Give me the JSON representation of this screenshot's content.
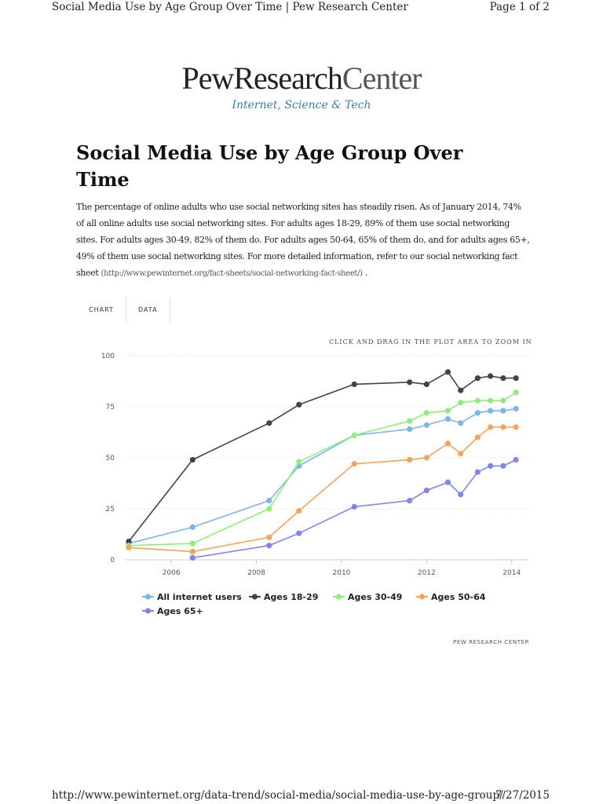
{
  "print_header": {
    "title": "Social Media Use by Age Group Over Time | Pew Research Center",
    "page": "Page 1 of 2"
  },
  "logo": {
    "word1": "PewResearch",
    "word2": "Center",
    "subtitle": "Internet, Science & Tech"
  },
  "article": {
    "title": "Social Media Use by Age Group Over Time",
    "intro": "The percentage of online adults who use social networking sites has steadily risen. As of January 2014, 74% of all online adults use social networking sites. For adults ages 18-29, 89% of them use social networking sites. For adults ages 30-49, 82% of them do. For adults ages 50-64, 65% of them do, and for adults ages 65+, 49% of them use social networking sites. For more detailed information, refer to our social networking fact sheet",
    "intro_link": "(http://www.pewinternet.org/fact-sheets/social-networking-fact-sheet/)",
    "intro_end": "."
  },
  "chart_tabs": {
    "chart_label": "CHART",
    "data_label": "DATA"
  },
  "zoom_hint": "CLICK AND DRAG IN THE PLOT AREA TO ZOOM IN",
  "chart_credit": "PEW RESEARCH CENTER",
  "chart_data": {
    "type": "line",
    "title": "",
    "xlabel": "",
    "ylabel": "",
    "xlim": [
      2005.0,
      2014.3
    ],
    "ylim": [
      0,
      100
    ],
    "yticks": [
      0,
      25,
      50,
      75,
      100
    ],
    "xticks": [
      2006,
      2008,
      2010,
      2012,
      2014
    ],
    "grid": true,
    "legend_position": "bottom-left",
    "series": [
      {
        "name": "All internet users",
        "color": "#7cb5ec",
        "x": [
          2005.0,
          2006.5,
          2008.3,
          2009.0,
          2010.3,
          2011.6,
          2012.0,
          2012.5,
          2012.8,
          2013.2,
          2013.5,
          2013.8,
          2014.1
        ],
        "values": [
          8,
          16,
          29,
          46,
          61,
          64,
          66,
          69,
          67,
          72,
          73,
          73,
          74
        ]
      },
      {
        "name": "Ages 18-29",
        "color": "#434348",
        "x": [
          2005.0,
          2006.5,
          2008.3,
          2009.0,
          2010.3,
          2011.6,
          2012.0,
          2012.5,
          2012.8,
          2013.2,
          2013.5,
          2013.8,
          2014.1
        ],
        "values": [
          9,
          49,
          67,
          76,
          86,
          87,
          86,
          92,
          83,
          89,
          90,
          89,
          89
        ]
      },
      {
        "name": "Ages 30-49",
        "color": "#90ed7d",
        "x": [
          2005.0,
          2006.5,
          2008.3,
          2009.0,
          2010.3,
          2011.6,
          2012.0,
          2012.5,
          2012.8,
          2013.2,
          2013.5,
          2013.8,
          2014.1
        ],
        "values": [
          7,
          8,
          25,
          48,
          61,
          68,
          72,
          73,
          77,
          78,
          78,
          78,
          82
        ]
      },
      {
        "name": "Ages 50-64",
        "color": "#f7a35c",
        "x": [
          2005.0,
          2006.5,
          2008.3,
          2009.0,
          2010.3,
          2011.6,
          2012.0,
          2012.5,
          2012.8,
          2013.2,
          2013.5,
          2013.8,
          2014.1
        ],
        "values": [
          6,
          4,
          11,
          24,
          47,
          49,
          50,
          57,
          52,
          60,
          65,
          65,
          65
        ]
      },
      {
        "name": "Ages 65+",
        "color": "#8085e9",
        "x": [
          2006.5,
          2008.3,
          2009.0,
          2010.3,
          2011.6,
          2012.0,
          2012.5,
          2012.8,
          2013.2,
          2013.5,
          2013.8,
          2014.1
        ],
        "values": [
          1,
          7,
          13,
          26,
          29,
          34,
          38,
          32,
          43,
          46,
          46,
          49
        ]
      }
    ]
  },
  "footer": {
    "url": "http://www.pewinternet.org/data-trend/social-media/social-media-use-by-age-group/",
    "date": "7/27/2015"
  }
}
